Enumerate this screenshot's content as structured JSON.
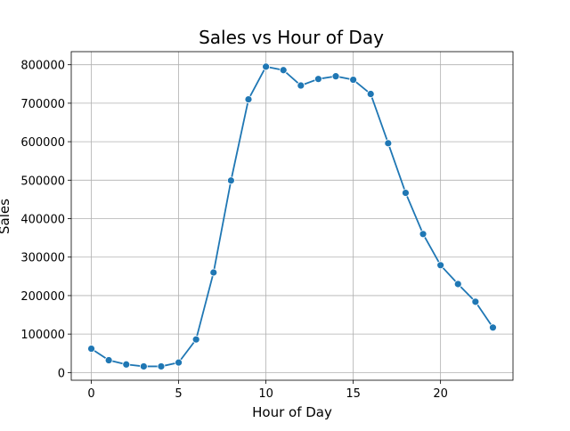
{
  "chart_data": {
    "type": "line",
    "title": "Sales vs Hour of Day",
    "xlabel": "Hour of Day",
    "ylabel": "Sales",
    "xlim": [
      -1.15,
      24.15
    ],
    "ylim": [
      -20000,
      834000
    ],
    "grid": true,
    "marker": "circle",
    "color": "#1f77b4",
    "x_ticks": [
      0,
      5,
      10,
      15,
      20
    ],
    "y_ticks": [
      0,
      100000,
      200000,
      300000,
      400000,
      500000,
      600000,
      700000,
      800000
    ],
    "series": [
      {
        "x": [
          0,
          1,
          2,
          3,
          4,
          5,
          6,
          7,
          8,
          9,
          10,
          11,
          12,
          13,
          14,
          15,
          16,
          17,
          18,
          19,
          20,
          21,
          22,
          23
        ],
        "values": [
          62000,
          32000,
          21000,
          16000,
          16000,
          26000,
          86000,
          260000,
          499000,
          710000,
          795000,
          786000,
          746000,
          763000,
          770000,
          761000,
          724000,
          596000,
          467000,
          360000,
          279000,
          230000,
          184000,
          117000
        ]
      }
    ]
  }
}
